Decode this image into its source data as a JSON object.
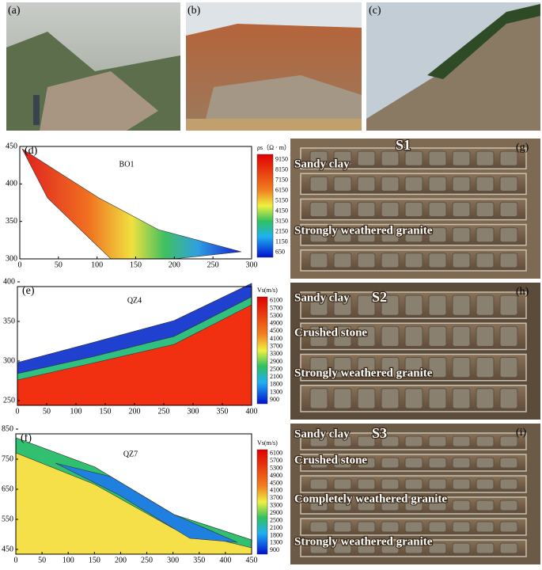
{
  "photos": [
    {
      "label": "(a)"
    },
    {
      "label": "(b)"
    },
    {
      "label": "(c)"
    }
  ],
  "profiles": [
    {
      "label": "(d)",
      "title": "BO1",
      "unit": "ρs（Ω · m）",
      "legend": [
        9150,
        8150,
        7150,
        6150,
        5150,
        4150,
        3150,
        2150,
        1150,
        650
      ],
      "xticks": [
        0,
        50,
        100,
        150,
        200,
        250,
        300
      ],
      "yticks": [
        300,
        350,
        400,
        450
      ]
    },
    {
      "label": "(e)",
      "title": "QZ4",
      "unit": "Vs(m/s)",
      "legend": [
        6100,
        5700,
        5300,
        4900,
        4500,
        4100,
        3700,
        3300,
        2900,
        2500,
        2100,
        1800,
        1300,
        900
      ],
      "xticks": [
        0,
        50,
        100,
        150,
        200,
        250,
        300,
        350,
        400
      ],
      "yticks": [
        250,
        300,
        350,
        400
      ]
    },
    {
      "label": "(f)",
      "title": "QZ7",
      "unit": "Vs(m/s)",
      "legend": [
        6100,
        5700,
        5300,
        4900,
        4500,
        4100,
        3700,
        3300,
        2900,
        2500,
        2100,
        1800,
        1300,
        900
      ],
      "xticks": [
        0,
        50,
        100,
        150,
        200,
        250,
        300,
        350,
        400,
        450
      ],
      "yticks": [
        450,
        550,
        650,
        750,
        850
      ]
    }
  ],
  "cores": [
    {
      "label": "(g)",
      "borehole": "S1",
      "layers": [
        "Sandy clay",
        "Strongly weathered granite"
      ]
    },
    {
      "label": "(h)",
      "borehole": "S2",
      "layers": [
        "Sandy clay",
        "Crushed stone",
        "Strongly weathered granite"
      ]
    },
    {
      "label": "(i)",
      "borehole": "S3",
      "layers": [
        "Sandy clay",
        "Crushed stone",
        "Completely weathered granite",
        "Strongly weathered granite"
      ]
    }
  ]
}
